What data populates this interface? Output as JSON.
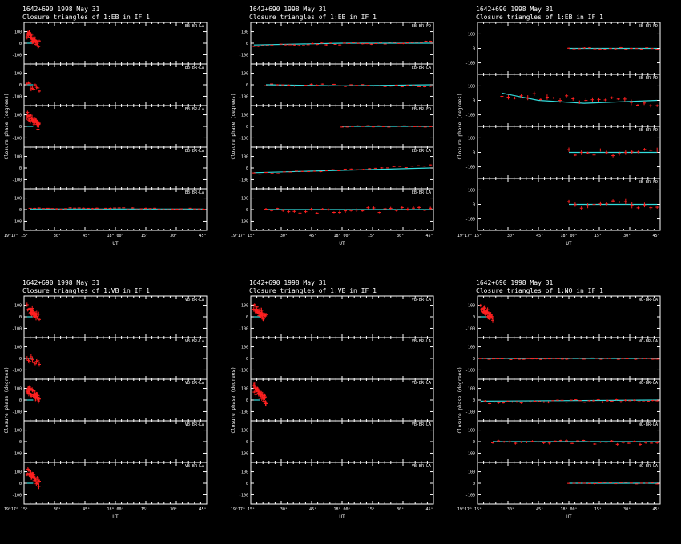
{
  "colors": {
    "background": "#000000",
    "foreground": "#ffffff",
    "data": "#ff2020",
    "model": "#33dddd",
    "model_alt": "#22cc66"
  },
  "x_ticks": [
    "19ʰ17ᵐ 15ˢ",
    "30ˢ",
    "45ˢ",
    "18ᵐ 00ˢ",
    "15ˢ",
    "30ˢ",
    "45ˢ"
  ],
  "x_ticks_alt": [
    "19ʰ17ᵐ 15ˢ",
    "30ˢ",
    "45ˢ",
    "18ᵐ 00ˢ",
    "15ˢ",
    "30ˢ",
    "45ˢ"
  ],
  "chart_data": [
    {
      "type": "scatter",
      "header": "1642+690   1998 May 31",
      "title": "Closure triangles of 1:EB in IF 1",
      "xlabel": "UT",
      "ylabel": "Closure phase   (degrees)",
      "xlim": [
        0,
        6
      ],
      "panels": [
        {
          "label": "EB-BR-LA",
          "ylim": [
            -180,
            180
          ],
          "yticks": [
            "100",
            "0",
            "-100"
          ],
          "segments": [
            [
              0.1,
              0.5,
              80,
              -5,
              40,
              20
            ],
            [
              0.2,
              0.4,
              50,
              0,
              30,
              15
            ]
          ],
          "model": [
            [
              0.1,
              0
            ],
            [
              0.3,
              0
            ]
          ]
        },
        {
          "label": "EB-BR-LA",
          "ylim": [
            -180,
            180
          ],
          "yticks": [
            "100",
            "0",
            "-100"
          ],
          "segments": [
            [
              0.1,
              0.5,
              0,
              -30,
              35,
              10
            ]
          ],
          "model": [
            [
              0.1,
              0
            ],
            [
              0.3,
              0
            ]
          ]
        },
        {
          "label": "EB-BR-LA",
          "ylim": [
            -180,
            180
          ],
          "yticks": [
            "100",
            "0",
            "-100"
          ],
          "segments": [
            [
              0.1,
              0.5,
              100,
              0,
              45,
              30
            ]
          ],
          "model": [
            [
              0.1,
              0
            ],
            [
              0.3,
              0
            ]
          ]
        },
        {
          "label": "EB-BR-LA",
          "ylim": [
            -180,
            180
          ],
          "yticks": [
            "100",
            "0",
            "-100"
          ],
          "segments": [],
          "model": []
        },
        {
          "label": "EB-BR-LA",
          "ylim": [
            -180,
            180
          ],
          "yticks": [
            "100",
            "0",
            "-100"
          ],
          "segments": [
            [
              0.2,
              5.9,
              10,
              5,
              10,
              40
            ]
          ],
          "model": [
            [
              0.2,
              5
            ],
            [
              5.9,
              5
            ]
          ]
        }
      ]
    },
    {
      "type": "scatter",
      "header": "1642+690   1998 May 31",
      "title": "Closure triangles of 1:EB in IF 1",
      "xlabel": "UT",
      "ylabel": "Closure phase   (degrees)",
      "xlim": [
        0,
        6
      ],
      "panels": [
        {
          "label": "EB-BR-FD",
          "ylim": [
            -180,
            180
          ],
          "yticks": [
            "100",
            "0",
            "-100"
          ],
          "segments": [
            [
              0.1,
              5.9,
              -20,
              10,
              12,
              40
            ]
          ],
          "model": [
            [
              0.1,
              -15
            ],
            [
              3.0,
              0
            ],
            [
              5.9,
              0
            ]
          ]
        },
        {
          "label": "EB-BR-LA",
          "ylim": [
            -180,
            180
          ],
          "yticks": [
            "100",
            "0",
            "-100"
          ],
          "segments": [
            [
              0.5,
              5.9,
              0,
              -10,
              12,
              30
            ]
          ],
          "model": [
            [
              0.5,
              0
            ],
            [
              3.0,
              -10
            ],
            [
              5.9,
              0
            ]
          ]
        },
        {
          "label": "EB-BR-FD",
          "ylim": [
            -180,
            180
          ],
          "yticks": [
            "100",
            "0",
            "-100"
          ],
          "segments": [
            [
              3.0,
              5.9,
              0,
              0,
              8,
              18
            ]
          ],
          "model": [
            [
              3.0,
              0
            ],
            [
              5.9,
              0
            ]
          ]
        },
        {
          "label": "EB-BR-LA",
          "ylim": [
            -180,
            180
          ],
          "yticks": [
            "100",
            "0",
            "-100"
          ],
          "segments": [
            [
              0.1,
              5.9,
              -50,
              20,
              10,
              30
            ]
          ],
          "model": [
            [
              0.1,
              -40
            ],
            [
              5.9,
              0
            ]
          ]
        },
        {
          "label": "EB-BR-LA",
          "ylim": [
            -180,
            180
          ],
          "yticks": [
            "100",
            "0",
            "-100"
          ],
          "segments": [
            [
              0.5,
              5.9,
              -10,
              0,
              30,
              30
            ]
          ],
          "model": [
            [
              0.5,
              0
            ],
            [
              5.9,
              0
            ]
          ]
        }
      ]
    },
    {
      "type": "scatter",
      "header": "1642+690   1998 May 31",
      "title": "Closure triangles of 1:EB in IF 1",
      "xlabel": "UT",
      "ylabel": "Closure phase   (degrees)",
      "xlim": [
        0,
        6
      ],
      "panels": [
        {
          "label": "EB-BR-FD",
          "ylim": [
            -180,
            180
          ],
          "yticks": [
            "100",
            "0",
            "-100"
          ],
          "segments": [
            [
              3.0,
              5.9,
              0,
              0,
              8,
              18
            ]
          ],
          "model": [
            [
              3.0,
              0
            ],
            [
              5.9,
              0
            ]
          ]
        },
        {
          "label": "EB-BR-FD",
          "ylim": [
            -180,
            180
          ],
          "yticks": [
            "100",
            "0",
            "-100"
          ],
          "segments": [
            [
              0.8,
              5.9,
              40,
              -20,
              30,
              25
            ]
          ],
          "model": [
            [
              0.8,
              50
            ],
            [
              2.0,
              0
            ],
            [
              3.5,
              -20
            ],
            [
              5.9,
              0
            ]
          ]
        },
        {
          "label": "EB-BR-FD",
          "ylim": [
            -180,
            180
          ],
          "yticks": [
            "100",
            "0",
            "-100"
          ],
          "segments": [
            [
              3.0,
              5.9,
              0,
              0,
              30,
              15
            ]
          ],
          "model": [
            [
              3.0,
              0
            ],
            [
              5.9,
              0
            ]
          ]
        },
        {
          "label": "EB-BR-FD",
          "ylim": [
            -180,
            180
          ],
          "yticks": [
            "100",
            "0",
            "-100"
          ],
          "segments": [
            [
              3.0,
              5.9,
              0,
              0,
              35,
              15
            ]
          ],
          "model": [
            [
              3.0,
              0
            ],
            [
              5.9,
              0
            ]
          ]
        }
      ]
    },
    {
      "type": "scatter",
      "header": "1642+690   1998 May 31",
      "title": "Closure triangles of 1:VB in IF 1",
      "xlabel": "UT",
      "ylabel": "Closure phase   (degrees)",
      "xlim": [
        0,
        6
      ],
      "panels": [
        {
          "label": "VB-BR-LA",
          "ylim": [
            -180,
            180
          ],
          "yticks": [
            "100",
            "0",
            "-100"
          ],
          "segments": [
            [
              0.1,
              0.5,
              80,
              -5,
              40,
              20
            ],
            [
              0.2,
              0.4,
              50,
              0,
              30,
              15
            ]
          ],
          "model": [
            [
              0.1,
              0
            ],
            [
              0.3,
              0
            ]
          ]
        },
        {
          "label": "VB-BR-LA",
          "ylim": [
            -180,
            180
          ],
          "yticks": [
            "100",
            "0",
            "-100"
          ],
          "segments": [
            [
              0.1,
              0.5,
              0,
              -30,
              35,
              10
            ]
          ],
          "model": [
            [
              0.1,
              0
            ],
            [
              0.3,
              0
            ]
          ]
        },
        {
          "label": "VB-BR-LA",
          "ylim": [
            -180,
            180
          ],
          "yticks": [
            "100",
            "0",
            "-100"
          ],
          "segments": [
            [
              0.1,
              0.5,
              100,
              0,
              45,
              30
            ]
          ],
          "model": [
            [
              0.1,
              0
            ],
            [
              0.3,
              0
            ]
          ]
        },
        {
          "label": "VB-BR-LA",
          "ylim": [
            -180,
            180
          ],
          "yticks": [
            "100",
            "0",
            "-100"
          ],
          "segments": [],
          "model": []
        },
        {
          "label": "VB-BR-LA",
          "ylim": [
            -180,
            180
          ],
          "yticks": [
            "100",
            "0",
            "-100"
          ],
          "segments": [
            [
              0.1,
              0.5,
              100,
              0,
              40,
              30
            ]
          ],
          "model": [
            [
              0.1,
              0
            ],
            [
              0.3,
              0
            ]
          ]
        }
      ]
    },
    {
      "type": "scatter",
      "header": "1642+690   1998 May 31",
      "title": "Closure triangles of 1:VB in IF 1",
      "xlabel": "UT",
      "ylabel": "Closure phase   (degrees)",
      "xlim": [
        0,
        6
      ],
      "panels": [
        {
          "label": "VB-BR-LA",
          "ylim": [
            -180,
            180
          ],
          "yticks": [
            "100",
            "0",
            "-100"
          ],
          "segments": [
            [
              0.1,
              0.5,
              80,
              -5,
              40,
              20
            ],
            [
              0.2,
              0.4,
              50,
              0,
              30,
              15
            ]
          ],
          "model": [
            [
              0.1,
              0
            ],
            [
              0.3,
              0
            ]
          ]
        },
        {
          "label": "VB-BR-LA",
          "ylim": [
            -180,
            180
          ],
          "yticks": [
            "100",
            "0",
            "-100"
          ],
          "segments": [],
          "model": []
        },
        {
          "label": "VB-BR-LA",
          "ylim": [
            -180,
            180
          ],
          "yticks": [
            "100",
            "0",
            "-100"
          ],
          "segments": [
            [
              0.1,
              0.5,
              100,
              0,
              45,
              30
            ]
          ],
          "model": [
            [
              0.1,
              0
            ],
            [
              0.3,
              0
            ]
          ]
        },
        {
          "label": "VB-BR-LA",
          "ylim": [
            -180,
            180
          ],
          "yticks": [
            "100",
            "0",
            "-100"
          ],
          "segments": [],
          "model": []
        },
        {
          "label": "VB-BR-LA",
          "ylim": [
            -180,
            180
          ],
          "yticks": [
            "100",
            "0",
            "-100"
          ],
          "segments": [],
          "model": []
        }
      ]
    },
    {
      "type": "scatter",
      "header": "1642+690   1998 May 31",
      "title": "Closure triangles of 1:NO in IF 1",
      "xlabel": "UT",
      "ylabel": "Closure phase   (degrees)",
      "xlim": [
        0,
        6
      ],
      "panels": [
        {
          "label": "NO-BR-LA",
          "ylim": [
            -180,
            180
          ],
          "yticks": [
            "100",
            "0",
            "-100"
          ],
          "segments": [
            [
              0.1,
              0.5,
              80,
              -5,
              40,
              20
            ],
            [
              0.2,
              0.4,
              50,
              0,
              30,
              15
            ]
          ],
          "model": [
            [
              0.1,
              0
            ],
            [
              0.3,
              0
            ]
          ]
        },
        {
          "label": "NO-BR-LA",
          "ylim": [
            -180,
            180
          ],
          "yticks": [
            "100",
            "0",
            "-100"
          ],
          "segments": [
            [
              0.1,
              5.9,
              -5,
              0,
              8,
              42
            ]
          ],
          "model": [
            [
              0.1,
              0
            ],
            [
              5.9,
              0
            ]
          ]
        },
        {
          "label": "NO-BR-LA",
          "ylim": [
            -180,
            180
          ],
          "yticks": [
            "100",
            "0",
            "-100"
          ],
          "segments": [
            [
              0.1,
              5.9,
              -20,
              0,
              15,
              40
            ]
          ],
          "model": [
            [
              0.1,
              -10
            ],
            [
              5.9,
              0
            ]
          ]
        },
        {
          "label": "NO-BR-LA",
          "ylim": [
            -180,
            180
          ],
          "yticks": [
            "100",
            "0",
            "-100"
          ],
          "segments": [
            [
              0.5,
              5.9,
              0,
              -10,
              20,
              30
            ]
          ],
          "model": [
            [
              0.5,
              0
            ],
            [
              5.9,
              0
            ]
          ]
        },
        {
          "label": "NO-BR-LA",
          "ylim": [
            -180,
            180
          ],
          "yticks": [
            "100",
            "0",
            "-100"
          ],
          "segments": [
            [
              3.0,
              5.9,
              0,
              0,
              8,
              18
            ]
          ],
          "model": [
            [
              3.0,
              0
            ],
            [
              5.9,
              0
            ]
          ]
        }
      ]
    }
  ]
}
